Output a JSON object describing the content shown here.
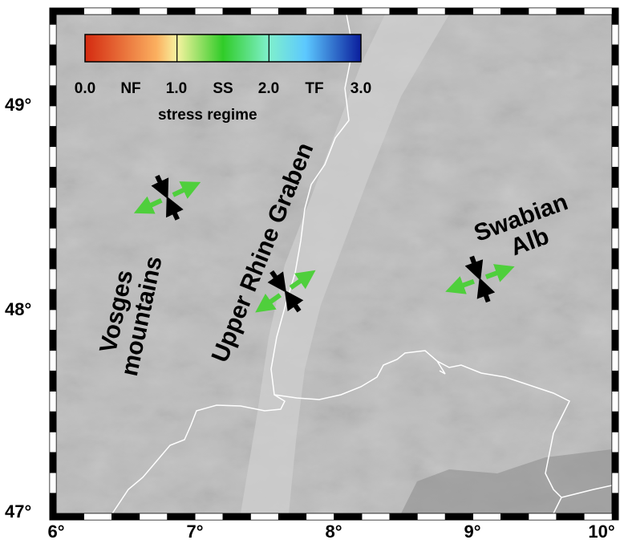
{
  "map": {
    "x_ticks": [
      {
        "lon": 6,
        "label": "6°"
      },
      {
        "lon": 7,
        "label": "7°"
      },
      {
        "lon": 8,
        "label": "8°"
      },
      {
        "lon": 9,
        "label": "9°"
      },
      {
        "lon": 10,
        "label": "10°"
      }
    ],
    "y_ticks": [
      {
        "lat": 49,
        "label": "49°"
      },
      {
        "lat": 48,
        "label": "48°"
      },
      {
        "lat": 47,
        "label": "47°"
      }
    ],
    "extent": {
      "lon_min": 6,
      "lon_max": 10,
      "lat_min": 47,
      "lat_max": 49.4
    }
  },
  "colorbar": {
    "title": "stress regime",
    "range": [
      0.0,
      3.0
    ],
    "colors": [
      "#d42a10",
      "#fbbf6a",
      "#f4f59a",
      "#35cf2c",
      "#6fe4c8",
      "#59c7ff",
      "#2e5be0",
      "#0a1fa4"
    ],
    "tick_labels": [
      "0.0",
      "NF",
      "1.0",
      "SS",
      "2.0",
      "TF",
      "3.0"
    ]
  },
  "regions": {
    "vosges": "Vosges\nmountains",
    "rhine": "Upper Rhine Graben",
    "swabian": "Swabian\nAlb"
  },
  "stress_symbols": [
    {
      "name": "vosges",
      "lon": 6.8,
      "lat": 48.55,
      "shmax_azimuth_deg": 65,
      "regime_value": 1.25,
      "shmax_color": "#4fcf3c"
    },
    {
      "name": "rhine",
      "lon": 7.65,
      "lat": 48.09,
      "shmax_azimuth_deg": 55,
      "regime_value": 1.25,
      "shmax_color": "#4fcf3c"
    },
    {
      "name": "swabian",
      "lon": 9.05,
      "lat": 48.15,
      "shmax_azimuth_deg": 70,
      "regime_value": 1.25,
      "shmax_color": "#4fcf3c"
    }
  ],
  "borders_color": "#ffffff",
  "relief_base": "#b9b9b9"
}
